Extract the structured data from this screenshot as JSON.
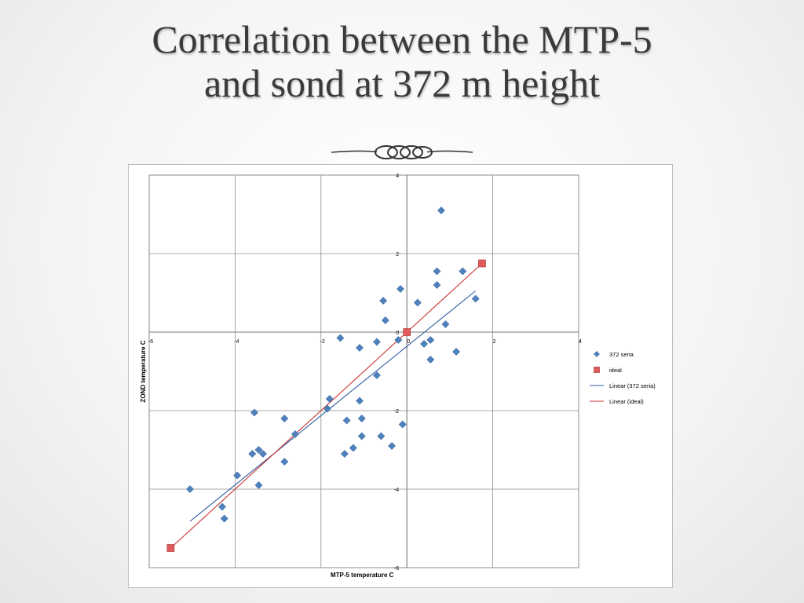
{
  "slide": {
    "title_line1": "Correlation between the MTP-5",
    "title_line2": "and sond at 372 m height"
  },
  "chart_data": {
    "type": "scatter",
    "xlabel": "MTP-5 temperature C",
    "ylabel": "ZOND temperature C",
    "xlim": [
      -6,
      4
    ],
    "ylim": [
      -6,
      4
    ],
    "x_ticks": [
      -6,
      -4,
      -2,
      0,
      2,
      4
    ],
    "y_ticks": [
      -6,
      -4,
      -2,
      0,
      2,
      4
    ],
    "x_tick_labels": [
      "-6",
      "-4",
      "-2",
      "0",
      "2",
      "4"
    ],
    "y_tick_labels": [
      "-6",
      "-4",
      "-2",
      "0",
      "2",
      "4"
    ],
    "grid": true,
    "legend_position": "right",
    "series": [
      {
        "name": "372 seria",
        "marker": "diamond",
        "color": "#4f81bd",
        "points": [
          [
            -5.05,
            -4.0
          ],
          [
            -4.3,
            -4.45
          ],
          [
            -4.25,
            -4.75
          ],
          [
            -3.95,
            -3.65
          ],
          [
            -3.55,
            -2.05
          ],
          [
            -3.6,
            -3.1
          ],
          [
            -3.45,
            -3.0
          ],
          [
            -3.35,
            -3.1
          ],
          [
            -3.45,
            -3.9
          ],
          [
            -2.85,
            -2.2
          ],
          [
            -2.85,
            -3.3
          ],
          [
            -2.6,
            -2.6
          ],
          [
            -1.85,
            -1.95
          ],
          [
            -1.8,
            -1.7
          ],
          [
            -1.55,
            -0.15
          ],
          [
            -1.45,
            -3.1
          ],
          [
            -1.4,
            -2.25
          ],
          [
            -1.25,
            -2.95
          ],
          [
            -1.1,
            -1.75
          ],
          [
            -1.05,
            -2.2
          ],
          [
            -1.05,
            -2.65
          ],
          [
            -1.1,
            -0.4
          ],
          [
            -0.7,
            -0.25
          ],
          [
            -0.7,
            -1.1
          ],
          [
            -0.6,
            -2.65
          ],
          [
            -0.55,
            0.8
          ],
          [
            -0.5,
            0.3
          ],
          [
            -0.35,
            -2.9
          ],
          [
            -0.2,
            -0.2
          ],
          [
            -0.15,
            1.1
          ],
          [
            -0.1,
            -2.35
          ],
          [
            0.25,
            0.75
          ],
          [
            0.4,
            -0.3
          ],
          [
            0.55,
            -0.7
          ],
          [
            0.55,
            -0.2
          ],
          [
            0.7,
            1.2
          ],
          [
            0.7,
            1.55
          ],
          [
            0.8,
            3.1
          ],
          [
            0.9,
            0.2
          ],
          [
            1.15,
            -0.5
          ],
          [
            1.3,
            1.55
          ],
          [
            1.6,
            0.85
          ]
        ]
      },
      {
        "name": "ideal",
        "marker": "square",
        "color": "#e15b5b",
        "points": [
          [
            -5.5,
            -5.5
          ],
          [
            0,
            0
          ],
          [
            1.75,
            1.75
          ]
        ]
      }
    ],
    "trendlines": [
      {
        "name": "Linear (372 seria)",
        "color": "#2e5c9e",
        "from": [
          -5.05,
          -4.82
        ],
        "to": [
          1.6,
          1.05
        ]
      },
      {
        "name": "Linear (ideal)",
        "color": "#cc3333",
        "from": [
          -5.5,
          -5.5
        ],
        "to": [
          1.75,
          1.75
        ]
      }
    ]
  }
}
